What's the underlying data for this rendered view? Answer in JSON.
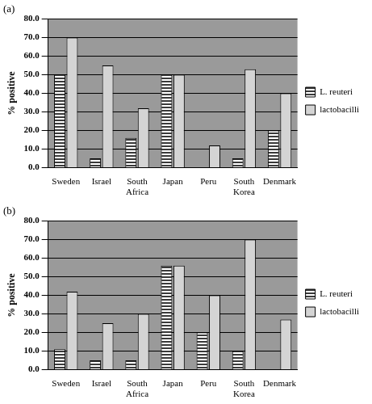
{
  "chart_data": [
    {
      "type": "bar",
      "title": "(a)",
      "y_label": "% positive",
      "categories": [
        "Sweden",
        "Israel",
        "South Africa",
        "Japan",
        "Peru",
        "South Korea",
        "Denmark"
      ],
      "series": [
        {
          "name": "L. reuteri",
          "color": "#3a3a3a",
          "values": [
            50,
            5,
            16,
            50,
            0,
            5,
            20
          ]
        },
        {
          "name": "lactobacilli",
          "color": "#d4d4d4",
          "values": [
            70,
            55,
            32,
            50,
            12,
            53,
            40
          ]
        }
      ],
      "ylim": [
        0,
        80
      ],
      "yticks": [
        {
          "value": 0,
          "label": "0.0"
        },
        {
          "value": 10,
          "label": "10.0"
        },
        {
          "value": 20,
          "label": "20.0"
        },
        {
          "value": 30,
          "label": "30.0"
        },
        {
          "value": 40,
          "label": "40.0"
        },
        {
          "value": 50,
          "label": "50.0"
        },
        {
          "value": 60,
          "label": "60.0"
        },
        {
          "value": 70,
          "label": "70.0"
        },
        {
          "value": 80,
          "label": "80.0"
        }
      ],
      "grid": true,
      "legend": "right"
    },
    {
      "type": "bar",
      "title": "(b)",
      "y_label": "% positive",
      "categories": [
        "Sweden",
        "Israel",
        "South Africa",
        "Japan",
        "Peru",
        "South Korea",
        "Denmark"
      ],
      "series": [
        {
          "name": "L. reuteri",
          "color": "#3a3a3a",
          "values": [
            11,
            5,
            5,
            56,
            20,
            10,
            0
          ]
        },
        {
          "name": "lactobacilli",
          "color": "#d4d4d4",
          "values": [
            42,
            25,
            30,
            56,
            40,
            70,
            27
          ]
        }
      ],
      "ylim": [
        0,
        80
      ],
      "yticks": [
        {
          "value": 0,
          "label": "0.0"
        },
        {
          "value": 10,
          "label": "10.0"
        },
        {
          "value": 20,
          "label": "20.0"
        },
        {
          "value": 30,
          "label": "30.0"
        },
        {
          "value": 40,
          "label": "40.0"
        },
        {
          "value": 50,
          "label": "50.0"
        },
        {
          "value": 60,
          "label": "60.0"
        },
        {
          "value": 70,
          "label": "70.0"
        },
        {
          "value": 80,
          "label": "80.0"
        }
      ],
      "grid": true,
      "legend": "right"
    }
  ]
}
